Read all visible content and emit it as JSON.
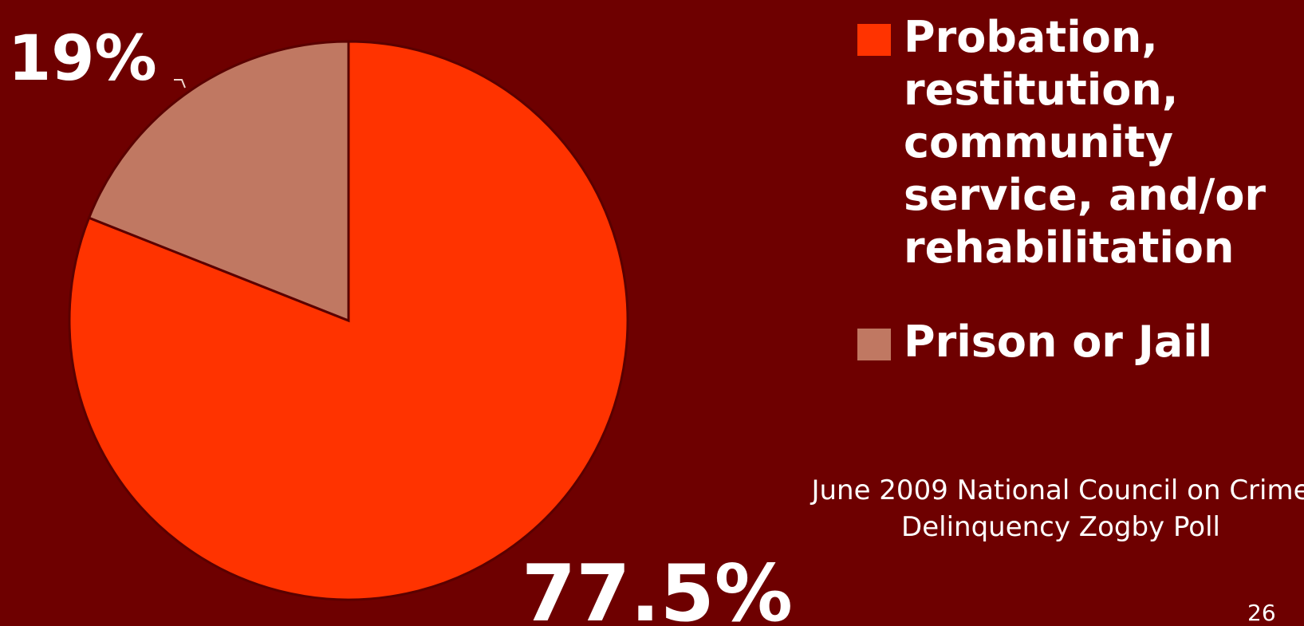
{
  "chart_data": {
    "type": "pie",
    "slices": [
      {
        "name": "Probation, restitution, community service, and/or rehabilitation",
        "value": 77.5,
        "label": "77.5%",
        "color": "#ff3300"
      },
      {
        "name": "Prison or Jail",
        "value": 19,
        "label": "19%",
        "color": "#c07862"
      }
    ],
    "legend": [
      {
        "text": "Probation, restitution, community service, and/or rehabilitation",
        "color": "#ff3300"
      },
      {
        "text": "Prison or Jail",
        "color": "#c07862"
      }
    ],
    "legend_placement": "right",
    "source": "June 2009 National Council on Crime Delinquency Zogby Poll"
  },
  "page_number": "26",
  "colors": {
    "background": "#6e0000",
    "slice_border": "#5a0000"
  }
}
